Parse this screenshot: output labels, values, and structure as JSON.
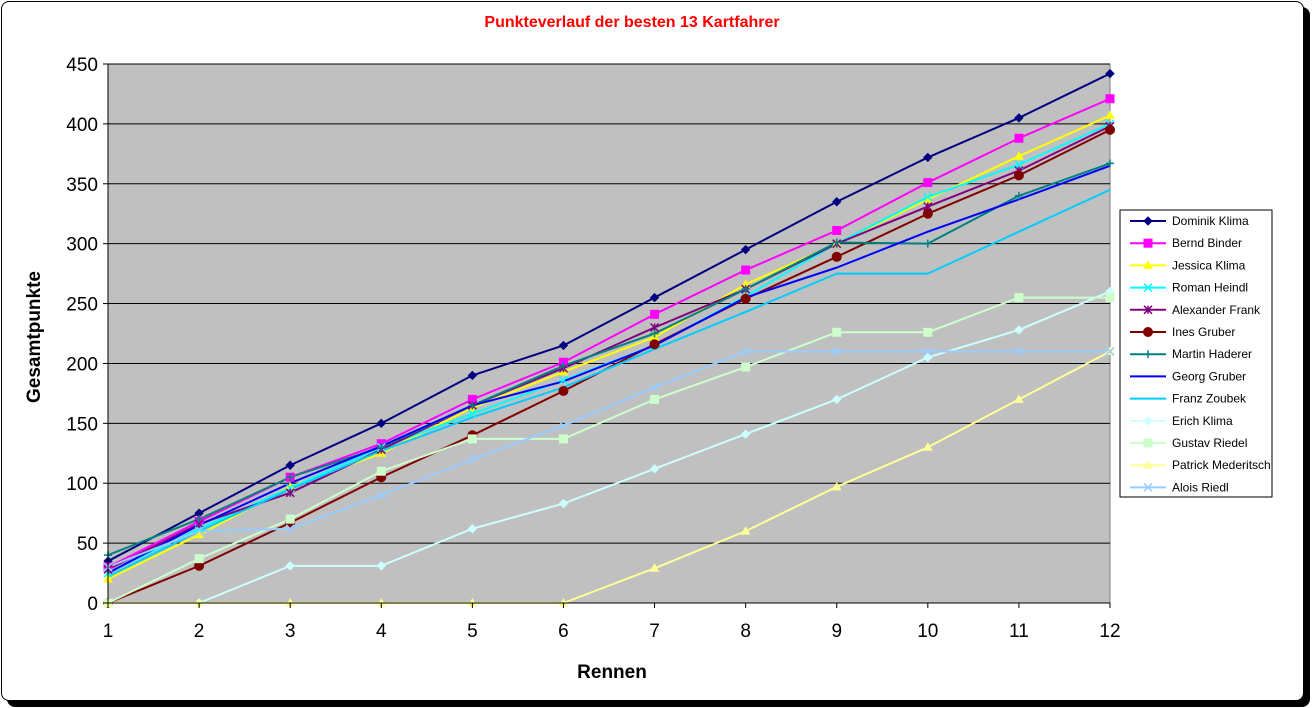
{
  "chart_data": {
    "type": "line",
    "title": "Punkteverlauf der besten 13 Kartfahrer",
    "xlabel": "Rennen",
    "ylabel": "Gesamtpunkte",
    "x": [
      1,
      2,
      3,
      4,
      5,
      6,
      7,
      8,
      9,
      10,
      11,
      12
    ],
    "ylim": [
      0,
      450
    ],
    "yticks": [
      0,
      50,
      100,
      150,
      200,
      250,
      300,
      350,
      400,
      450
    ],
    "grid": "horizontal",
    "legend": "right",
    "plot_background": "#c0c0c0",
    "series": [
      {
        "name": "Dominik Klima",
        "color": "#000080",
        "marker": "diamond",
        "values": [
          35,
          75,
          115,
          150,
          190,
          215,
          255,
          295,
          335,
          372,
          405,
          442
        ]
      },
      {
        "name": "Bernd Binder",
        "color": "#ff00ff",
        "marker": "square",
        "values": [
          30,
          68,
          105,
          133,
          170,
          201,
          241,
          278,
          311,
          351,
          388,
          421
        ]
      },
      {
        "name": "Jessica Klima",
        "color": "#ffff00",
        "marker": "triangle",
        "values": [
          20,
          57,
          97,
          125,
          163,
          193,
          222,
          266,
          300,
          337,
          373,
          407
        ]
      },
      {
        "name": "Roman Heindl",
        "color": "#00ffff",
        "marker": "cross",
        "values": [
          25,
          62,
          96,
          130,
          158,
          186,
          215,
          256,
          300,
          339,
          366,
          400
        ]
      },
      {
        "name": "Alexander Frank",
        "color": "#800080",
        "marker": "star",
        "values": [
          28,
          66,
          92,
          128,
          165,
          196,
          230,
          262,
          300,
          331,
          361,
          398
        ]
      },
      {
        "name": "Ines Gruber",
        "color": "#800000",
        "marker": "circle",
        "values": [
          0,
          31,
          67,
          105,
          140,
          177,
          216,
          254,
          289,
          325,
          357,
          395
        ]
      },
      {
        "name": "Martin Haderer",
        "color": "#008080",
        "marker": "plus",
        "values": [
          40,
          70,
          105,
          130,
          165,
          198,
          225,
          262,
          301,
          300,
          340,
          367
        ]
      },
      {
        "name": "Georg Gruber",
        "color": "#0000ff",
        "marker": "none",
        "values": [
          25,
          65,
          100,
          131,
          165,
          185,
          215,
          255,
          280,
          310,
          337,
          365
        ]
      },
      {
        "name": "Franz Zoubek",
        "color": "#00ccff",
        "marker": "none",
        "values": [
          22,
          60,
          95,
          127,
          155,
          180,
          212,
          243,
          275,
          275,
          310,
          345
        ]
      },
      {
        "name": "Erich Klima",
        "color": "#ccffff",
        "marker": "diamond",
        "values": [
          0,
          0,
          31,
          31,
          62,
          83,
          112,
          141,
          170,
          205,
          228,
          260
        ]
      },
      {
        "name": "Gustav Riedel",
        "color": "#ccffcc",
        "marker": "square",
        "values": [
          0,
          37,
          70,
          110,
          137,
          137,
          170,
          197,
          226,
          226,
          255,
          255
        ]
      },
      {
        "name": "Patrick Mederitsch",
        "color": "#ffff99",
        "marker": "triangle",
        "values": [
          0,
          0,
          0,
          0,
          0,
          0,
          29,
          60,
          97,
          130,
          170,
          210
        ]
      },
      {
        "name": "Alois Riedl",
        "color": "#99ccff",
        "marker": "cross",
        "values": [
          30,
          60,
          62,
          90,
          120,
          148,
          180,
          210,
          210,
          210,
          210,
          210
        ]
      }
    ]
  }
}
